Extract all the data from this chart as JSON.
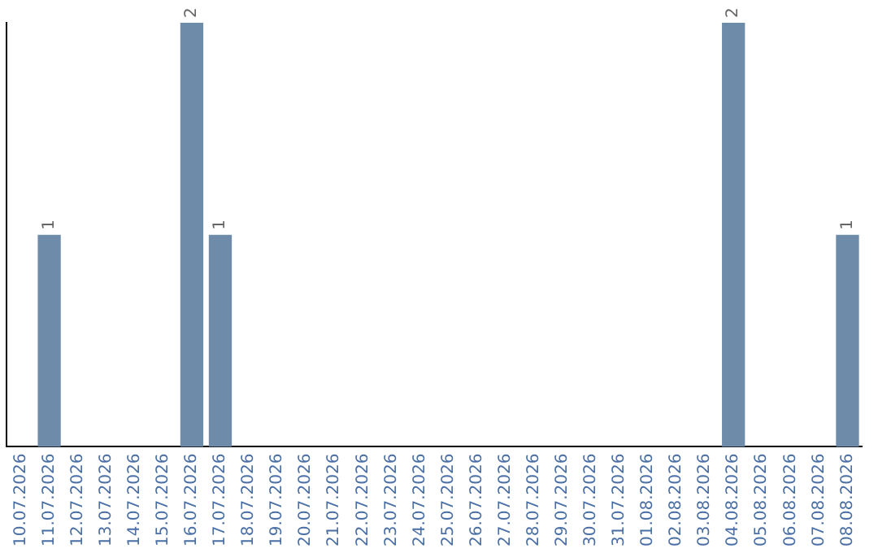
{
  "chart_data": {
    "type": "bar",
    "categories": [
      "10.07.2026",
      "11.07.2026",
      "12.07.2026",
      "13.07.2026",
      "14.07.2026",
      "15.07.2026",
      "16.07.2026",
      "17.07.2026",
      "18.07.2026",
      "19.07.2026",
      "20.07.2026",
      "21.07.2026",
      "22.07.2026",
      "23.07.2026",
      "24.07.2026",
      "25.07.2026",
      "26.07.2026",
      "27.07.2026",
      "28.07.2026",
      "29.07.2026",
      "30.07.2026",
      "31.07.2026",
      "01.08.2026",
      "02.08.2026",
      "03.08.2026",
      "04.08.2026",
      "05.08.2026",
      "06.08.2026",
      "07.08.2026",
      "08.08.2026"
    ],
    "values": [
      0,
      1,
      0,
      0,
      0,
      0,
      2,
      1,
      0,
      0,
      0,
      0,
      0,
      0,
      0,
      0,
      0,
      0,
      0,
      0,
      0,
      0,
      0,
      0,
      0,
      2,
      0,
      0,
      0,
      1
    ],
    "value_labels": [
      null,
      "1",
      null,
      null,
      null,
      null,
      "2",
      "1",
      null,
      null,
      null,
      null,
      null,
      null,
      null,
      null,
      null,
      null,
      null,
      null,
      null,
      null,
      null,
      null,
      null,
      "2",
      null,
      null,
      null,
      "1"
    ],
    "color": "#6e8caa",
    "ylim": [
      0,
      2
    ],
    "tick_labels": "x",
    "grid": false,
    "legend": false
  }
}
